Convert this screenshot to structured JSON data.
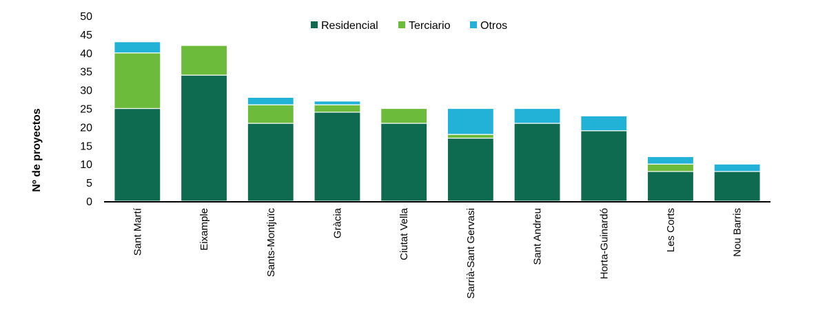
{
  "chart_data": {
    "type": "bar",
    "stacked": true,
    "title": "",
    "xlabel": "",
    "ylabel": "Nº de proyectos",
    "ylim": [
      0,
      50
    ],
    "yticks": [
      0,
      5,
      10,
      15,
      20,
      25,
      30,
      35,
      40,
      45,
      50
    ],
    "grid": false,
    "legend_position": "top-center",
    "categories": [
      "Sant Martí",
      "Eixample",
      "Sants-Montjuïc",
      "Gràcia",
      "Ciutat Vella",
      "Sarrià-Sant Gervasi",
      "Sant Andreu",
      "Horta-Guinardó",
      "Les Corts",
      "Nou Barris"
    ],
    "series": [
      {
        "name": "Residencial",
        "color": "#0e6b50",
        "values": [
          25,
          34,
          21,
          24,
          21,
          17,
          21,
          19,
          8,
          8
        ]
      },
      {
        "name": "Terciario",
        "color": "#6dbb3a",
        "values": [
          15,
          8,
          5,
          2,
          4,
          1,
          0,
          0,
          2,
          0
        ]
      },
      {
        "name": "Otros",
        "color": "#22b2d8",
        "values": [
          3,
          0,
          2,
          1,
          0,
          7,
          4,
          4,
          2,
          2
        ]
      }
    ]
  }
}
